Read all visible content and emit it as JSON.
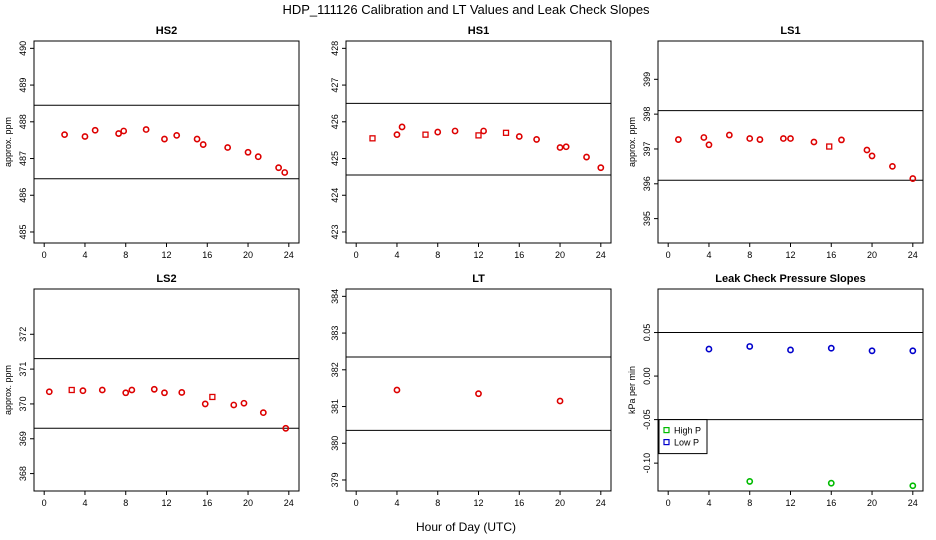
{
  "title": "HDP_111126  Calibration and LT Values and Leak Check Slopes",
  "xlabel": "Hour of Day (UTC)",
  "chart_data": [
    {
      "type": "scatter",
      "title": "HS2",
      "ylabel": "approx. ppm",
      "xlim": [
        -1,
        25
      ],
      "ylim": [
        484.7,
        490.2
      ],
      "xticks": [
        0,
        4,
        8,
        12,
        16,
        20,
        24
      ],
      "yticks": [
        485,
        486,
        487,
        488,
        489,
        490
      ],
      "hlines": [
        488.45,
        486.45
      ],
      "series": [
        {
          "marker": "circle",
          "color": "#dd0000",
          "x": [
            2.0,
            4.0,
            5.0,
            7.3,
            7.8,
            10.0,
            11.8,
            13.0,
            15.0,
            15.6,
            18.0,
            20.0,
            21.0,
            23.0,
            23.6
          ],
          "y": [
            487.65,
            487.6,
            487.77,
            487.68,
            487.75,
            487.79,
            487.53,
            487.63,
            487.53,
            487.38,
            487.3,
            487.17,
            487.05,
            486.75,
            486.62
          ]
        },
        {
          "marker": "square",
          "color": "#dd0000",
          "x": [],
          "y": []
        }
      ]
    },
    {
      "type": "scatter",
      "title": "HS1",
      "ylabel": "",
      "xlim": [
        -1,
        25
      ],
      "ylim": [
        422.7,
        428.2
      ],
      "xticks": [
        0,
        4,
        8,
        12,
        16,
        20,
        24
      ],
      "yticks": [
        423,
        424,
        425,
        426,
        427,
        428
      ],
      "hlines": [
        426.5,
        424.55
      ],
      "series": [
        {
          "marker": "circle",
          "color": "#dd0000",
          "x": [
            4.0,
            4.5,
            8.0,
            9.7,
            12.5,
            16.0,
            17.7,
            20.0,
            20.6,
            22.6,
            24.0
          ],
          "y": [
            425.65,
            425.86,
            425.72,
            425.75,
            425.75,
            425.6,
            425.52,
            425.3,
            425.32,
            425.04,
            424.75
          ]
        },
        {
          "marker": "square",
          "color": "#dd0000",
          "x": [
            1.6,
            6.8,
            12.0,
            14.7
          ],
          "y": [
            425.55,
            425.65,
            425.63,
            425.7
          ]
        }
      ]
    },
    {
      "type": "scatter",
      "title": "LS1",
      "ylabel": "approx. ppm",
      "xlim": [
        -1,
        25
      ],
      "ylim": [
        394.3,
        400.1
      ],
      "xticks": [
        0,
        4,
        8,
        12,
        16,
        20,
        24
      ],
      "yticks": [
        395,
        396,
        397,
        398,
        399
      ],
      "hlines": [
        398.1,
        396.1
      ],
      "series": [
        {
          "marker": "circle",
          "color": "#dd0000",
          "x": [
            1.0,
            3.5,
            4.0,
            6.0,
            8.0,
            9.0,
            11.3,
            12.0,
            14.3,
            17.0,
            19.5,
            20.0,
            22.0,
            24.0
          ],
          "y": [
            397.27,
            397.33,
            397.12,
            397.4,
            397.3,
            397.27,
            397.3,
            397.3,
            397.2,
            397.26,
            396.97,
            396.8,
            396.5,
            396.15
          ]
        },
        {
          "marker": "square",
          "color": "#dd0000",
          "x": [
            15.8
          ],
          "y": [
            397.07
          ]
        }
      ]
    },
    {
      "type": "scatter",
      "title": "LS2",
      "ylabel": "approx. ppm",
      "xlim": [
        -1,
        25
      ],
      "ylim": [
        367.5,
        373.3
      ],
      "xticks": [
        0,
        4,
        8,
        12,
        16,
        20,
        24
      ],
      "yticks": [
        368,
        369,
        370,
        371,
        372
      ],
      "hlines": [
        371.3,
        369.3
      ],
      "series": [
        {
          "marker": "circle",
          "color": "#dd0000",
          "x": [
            0.5,
            3.8,
            5.7,
            8.0,
            8.6,
            10.8,
            11.8,
            13.5,
            15.8,
            18.6,
            19.6,
            21.5,
            23.7
          ],
          "y": [
            370.35,
            370.38,
            370.4,
            370.32,
            370.4,
            370.42,
            370.32,
            370.33,
            370.0,
            369.97,
            370.02,
            369.75,
            369.3
          ]
        },
        {
          "marker": "square",
          "color": "#dd0000",
          "x": [
            2.7,
            16.5
          ],
          "y": [
            370.4,
            370.2
          ]
        }
      ]
    },
    {
      "type": "scatter",
      "title": "LT",
      "ylabel": "",
      "xlim": [
        -1,
        25
      ],
      "ylim": [
        378.7,
        384.2
      ],
      "xticks": [
        0,
        4,
        8,
        12,
        16,
        20,
        24
      ],
      "yticks": [
        379,
        380,
        381,
        382,
        383,
        384
      ],
      "hlines": [
        382.35,
        380.35
      ],
      "series": [
        {
          "marker": "circle",
          "color": "#dd0000",
          "x": [
            4.0,
            12.0,
            20.0
          ],
          "y": [
            381.45,
            381.35,
            381.15
          ]
        },
        {
          "marker": "square",
          "color": "#dd0000",
          "x": [],
          "y": []
        }
      ]
    },
    {
      "type": "scatter",
      "title": "Leak Check Pressure Slopes",
      "ylabel": "kPa per min",
      "xlim": [
        -1,
        25
      ],
      "ylim": [
        -0.132,
        0.1
      ],
      "xticks": [
        0,
        4,
        8,
        12,
        16,
        20,
        24
      ],
      "yticks": [
        -0.1,
        -0.05,
        0.0,
        0.05
      ],
      "ytick_labels": [
        "-0.10",
        "-0.05",
        "0.00",
        "0.05"
      ],
      "hlines": [
        0.05,
        -0.05
      ],
      "legend": {
        "position": "bottom-left",
        "entries": [
          {
            "label": "High P",
            "color": "#00bb00"
          },
          {
            "label": "Low P",
            "color": "#0000cc"
          }
        ]
      },
      "series": [
        {
          "name": "High P",
          "marker": "circle",
          "color": "#00bb00",
          "x": [
            8.0,
            16.0,
            24.0
          ],
          "y": [
            -0.121,
            -0.123,
            -0.126
          ]
        },
        {
          "name": "Low P",
          "marker": "circle",
          "color": "#0000cc",
          "x": [
            4.0,
            8.0,
            12.0,
            16.0,
            20.0,
            24.0
          ],
          "y": [
            0.031,
            0.034,
            0.03,
            0.032,
            0.029,
            0.029
          ]
        }
      ]
    }
  ]
}
